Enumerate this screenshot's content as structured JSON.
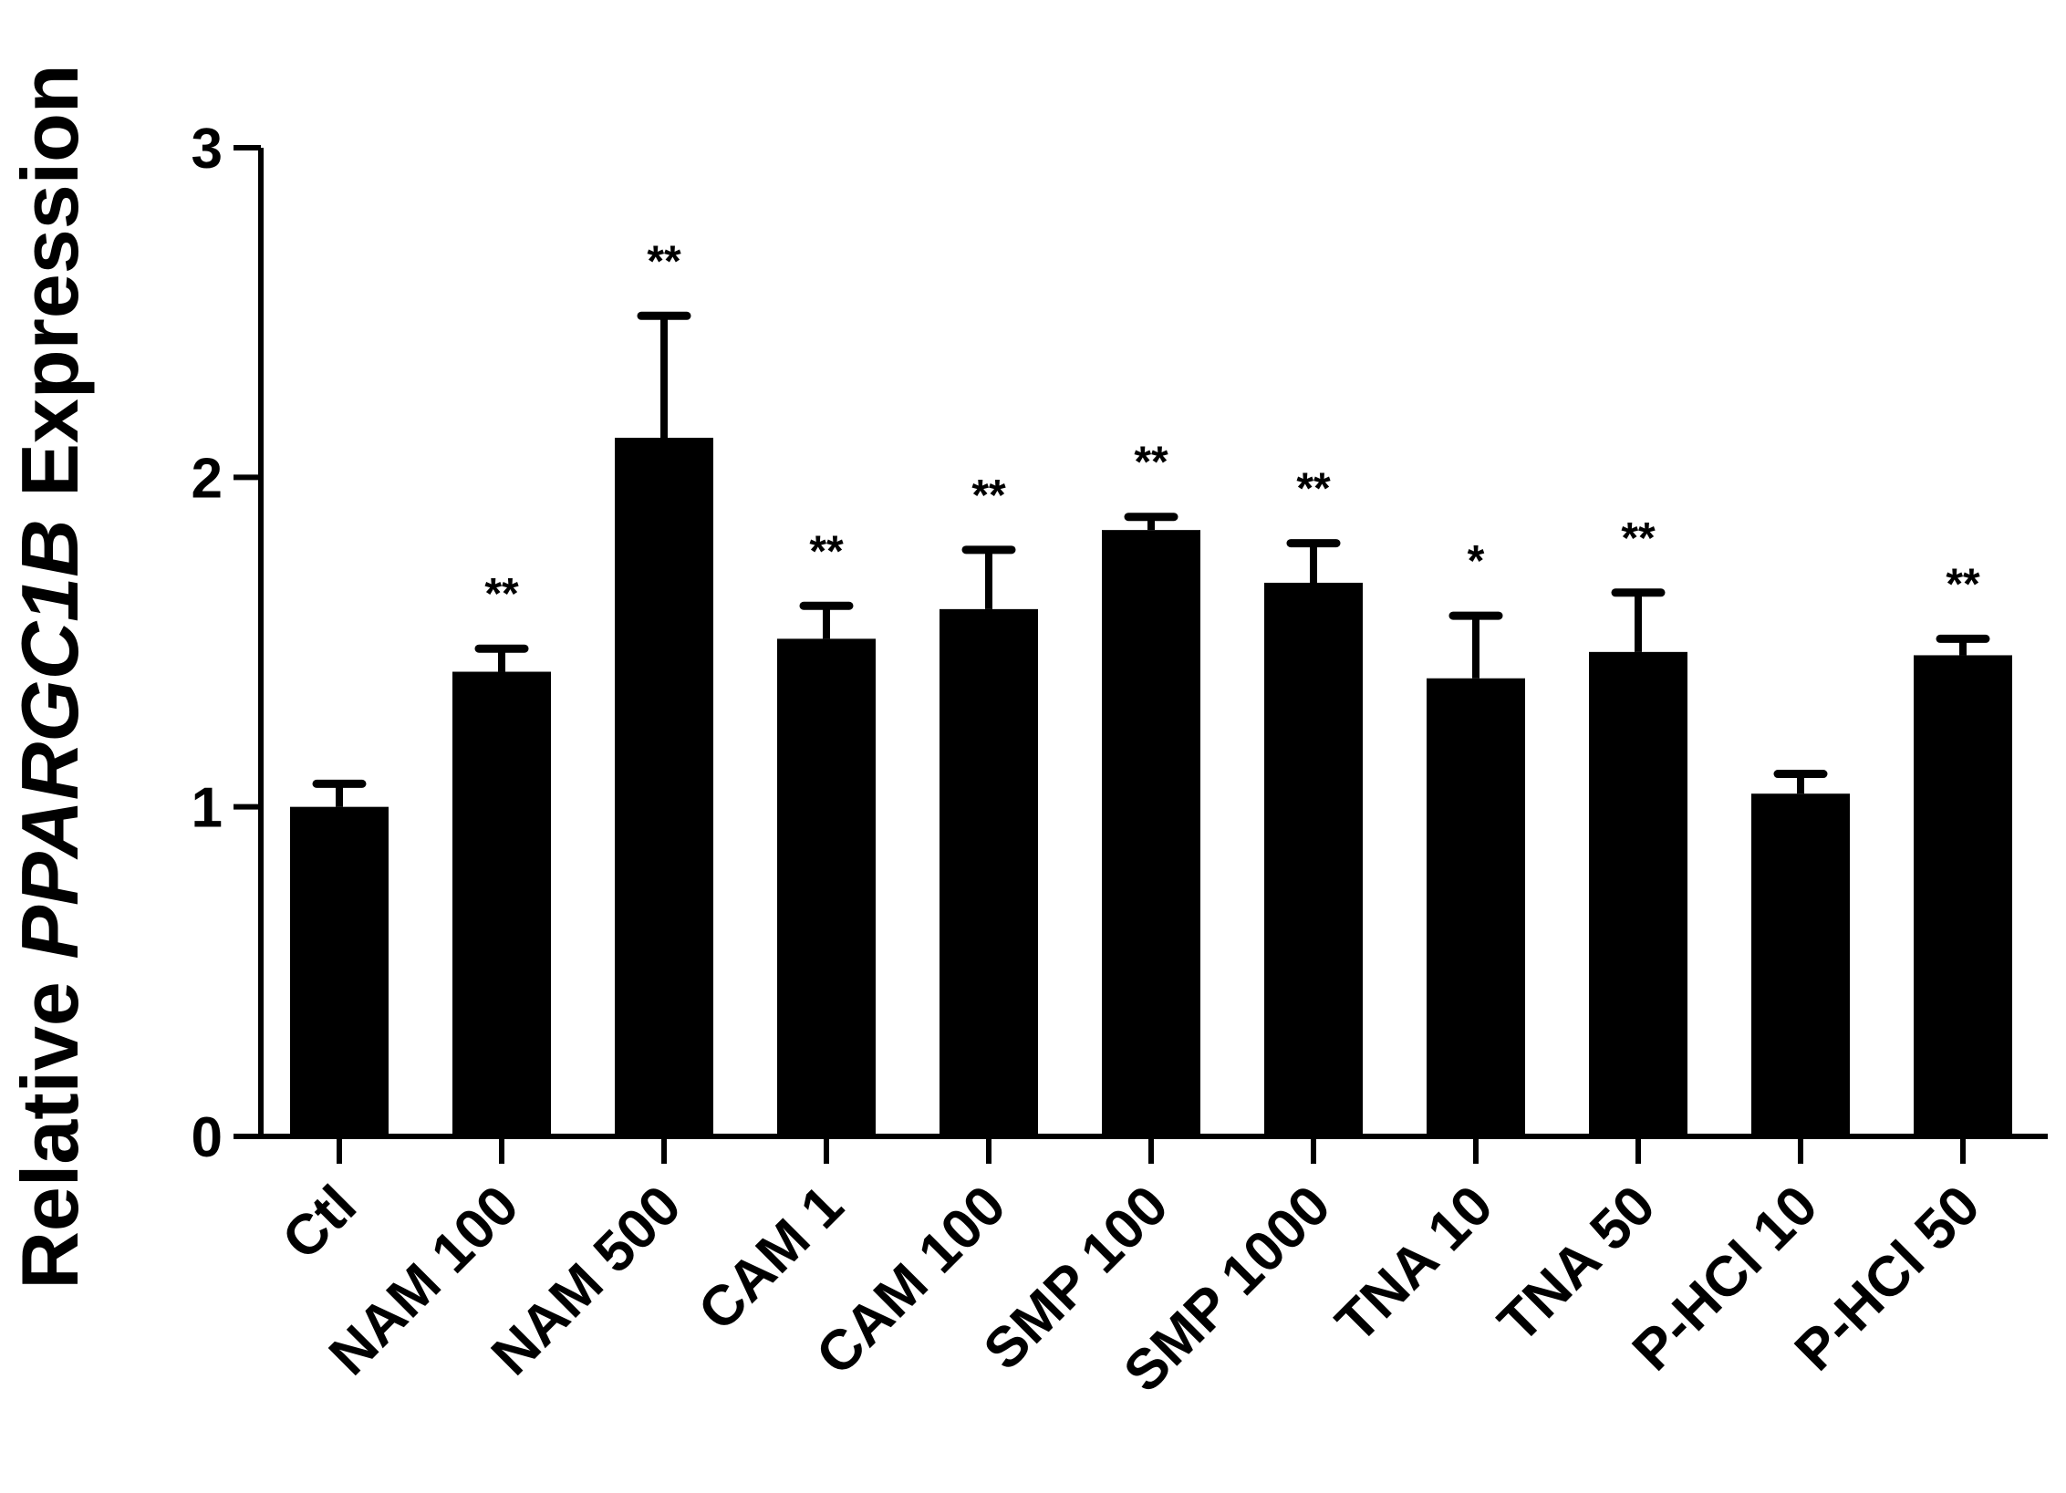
{
  "chart_data": {
    "type": "bar",
    "title": "",
    "xlabel": "",
    "ylabel": {
      "prefix": "Relative ",
      "gene": "PPARGC1B",
      "suffix": " Expression"
    },
    "ylim": [
      0,
      3
    ],
    "yticks": [
      "0",
      "1",
      "2",
      "3"
    ],
    "categories": [
      "Ctl",
      "NAM 100",
      "NAM 500",
      "CAM 1",
      "CAM 100",
      "SMP 100",
      "SMP 1000",
      "TNA 10",
      "TNA 50",
      "P-HCl 10",
      "P-HCl 50"
    ],
    "values": [
      1.0,
      1.41,
      2.12,
      1.51,
      1.6,
      1.84,
      1.68,
      1.39,
      1.47,
      1.04,
      1.46
    ],
    "error_upper": [
      1.07,
      1.48,
      2.49,
      1.61,
      1.78,
      1.88,
      1.8,
      1.58,
      1.65,
      1.1,
      1.51
    ],
    "significance": [
      "",
      "**",
      "**",
      "**",
      "**",
      "**",
      "**",
      "*",
      "**",
      "",
      "**"
    ],
    "bar_color": "#000000",
    "grid": false,
    "legend": "none"
  }
}
